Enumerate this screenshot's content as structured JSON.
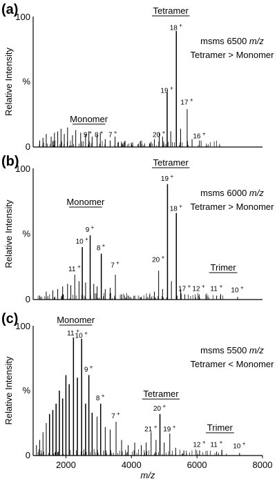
{
  "chart_data": [
    {
      "type": "line",
      "panel": "(a)",
      "ylabel": "Relative Intensity",
      "ytick_labels": [
        "0",
        "%",
        "100"
      ],
      "note_prefix": "msms 6500",
      "note_unit": "m/z",
      "note_line2": "Tetramer > Monomer",
      "xlim": [
        1000,
        8000
      ],
      "ylim": [
        0,
        100
      ],
      "species": [
        {
          "label": "Monomer",
          "x": 2700,
          "y": 17
        },
        {
          "label": "Tetramer",
          "x": 5200,
          "y": 100
        }
      ],
      "peaks": [
        {
          "label": "9",
          "charge": "+",
          "x": 2680,
          "y": 6
        },
        {
          "label": "8",
          "charge": "+",
          "x": 3020,
          "y": 6
        },
        {
          "label": "7",
          "charge": "+",
          "x": 3440,
          "y": 6
        },
        {
          "label": "20",
          "charge": "+",
          "x": 4850,
          "y": 6
        },
        {
          "label": "19",
          "charge": "+",
          "x": 5090,
          "y": 40
        },
        {
          "label": "18",
          "charge": "+",
          "x": 5370,
          "y": 88
        },
        {
          "label": "17",
          "charge": "+",
          "x": 5700,
          "y": 31
        },
        {
          "label": "16",
          "charge": "+",
          "x": 6080,
          "y": 5
        }
      ],
      "series": [
        {
          "x": [
            1200,
            1300,
            1400,
            1550,
            1650,
            1750,
            1850,
            1950,
            2050,
            2200,
            2300,
            2450,
            2600,
            2700,
            2800,
            2950,
            3050,
            3200,
            3350,
            3500,
            3600,
            3800,
            4000,
            4200,
            4400,
            4600,
            4700,
            4850,
            4950,
            5090,
            5200,
            5370,
            5500,
            5700,
            5850,
            6080,
            6300
          ],
          "y": [
            5,
            7,
            10,
            8,
            11,
            12,
            14,
            10,
            15,
            9,
            13,
            11,
            10,
            12,
            8,
            9,
            11,
            6,
            5,
            8,
            4,
            3,
            3,
            2,
            2,
            4,
            6,
            11,
            8,
            42,
            12,
            89,
            14,
            29,
            6,
            5,
            1
          ]
        }
      ]
    },
    {
      "type": "line",
      "panel": "(b)",
      "ylabel": "Relative Intensity",
      "ytick_labels": [
        "0",
        "%",
        "100"
      ],
      "note_prefix": "msms 6000",
      "note_unit": "m/z",
      "note_line2": "Tetramer > Monomer",
      "xlim": [
        1000,
        8000
      ],
      "ylim": [
        0,
        100
      ],
      "species": [
        {
          "label": "Monomer",
          "x": 2600,
          "y": 70
        },
        {
          "label": "Tetramer",
          "x": 5200,
          "y": 100
        },
        {
          "label": "Trimer",
          "x": 6800,
          "y": 20
        }
      ],
      "peaks": [
        {
          "label": "11",
          "charge": "+",
          "x": 2270,
          "y": 20
        },
        {
          "label": "10",
          "charge": "+",
          "x": 2500,
          "y": 41
        },
        {
          "label": "9",
          "charge": "+",
          "x": 2740,
          "y": 50
        },
        {
          "label": "8",
          "charge": "+",
          "x": 3080,
          "y": 36
        },
        {
          "label": "7",
          "charge": "+",
          "x": 3510,
          "y": 23
        },
        {
          "label": "20",
          "charge": "+",
          "x": 4830,
          "y": 27
        },
        {
          "label": "19",
          "charge": "+",
          "x": 5100,
          "y": 89
        },
        {
          "label": "18",
          "charge": "+",
          "x": 5370,
          "y": 66
        },
        {
          "label": "17",
          "charge": "+",
          "x": 5630,
          "y": 5
        },
        {
          "label": "12",
          "charge": "+",
          "x": 6060,
          "y": 5
        },
        {
          "label": "11",
          "charge": "+",
          "x": 6600,
          "y": 5
        },
        {
          "label": "10",
          "charge": "+",
          "x": 7240,
          "y": 4
        }
      ],
      "series": [
        {
          "x": [
            1200,
            1400,
            1600,
            1750,
            1900,
            2050,
            2150,
            2270,
            2400,
            2500,
            2600,
            2740,
            2850,
            2950,
            3080,
            3200,
            3350,
            3510,
            3700,
            3900,
            4100,
            4300,
            4500,
            4700,
            4830,
            4950,
            5100,
            5220,
            5370,
            5500,
            5630,
            6060,
            6600,
            7240
          ],
          "y": [
            3,
            6,
            7,
            8,
            10,
            12,
            11,
            19,
            14,
            40,
            13,
            49,
            12,
            10,
            35,
            8,
            9,
            19,
            4,
            3,
            3,
            2,
            2,
            6,
            22,
            8,
            88,
            14,
            66,
            8,
            4,
            3,
            3,
            2
          ]
        }
      ]
    },
    {
      "type": "line",
      "panel": "(c)",
      "ylabel": "Relative Intensity",
      "ytick_labels": [
        "0",
        "%",
        "100"
      ],
      "xlabel": "m/z",
      "note_prefix": "msms 5500",
      "note_unit": "m/z",
      "note_line2": "Tetramer < Monomer",
      "xlim": [
        1000,
        8000
      ],
      "ylim": [
        0,
        100
      ],
      "xticks": [
        2000,
        4000,
        6000,
        8000
      ],
      "species": [
        {
          "label": "Monomer",
          "x": 2300,
          "y": 100
        },
        {
          "label": "Tetramer",
          "x": 4900,
          "y": 43
        },
        {
          "label": "Trimer",
          "x": 6700,
          "y": 17
        }
      ],
      "peaks": [
        {
          "label": "11",
          "charge": "+",
          "x": 2230,
          "y": 91
        },
        {
          "label": "10",
          "charge": "+",
          "x": 2480,
          "y": 89
        },
        {
          "label": "9",
          "charge": "+",
          "x": 2700,
          "y": 63
        },
        {
          "label": "8",
          "charge": "+",
          "x": 3060,
          "y": 41
        },
        {
          "label": "7",
          "charge": "+",
          "x": 3530,
          "y": 27
        },
        {
          "label": "21",
          "charge": "+",
          "x": 4600,
          "y": 17
        },
        {
          "label": "20",
          "charge": "+",
          "x": 4870,
          "y": 33
        },
        {
          "label": "19",
          "charge": "+",
          "x": 5170,
          "y": 17
        },
        {
          "label": "12",
          "charge": "+",
          "x": 6080,
          "y": 5
        },
        {
          "label": "11",
          "charge": "+",
          "x": 6600,
          "y": 5
        },
        {
          "label": "10",
          "charge": "+",
          "x": 7300,
          "y": 4
        }
      ],
      "series": [
        {
          "x": [
            1100,
            1200,
            1300,
            1400,
            1500,
            1600,
            1700,
            1800,
            1900,
            2000,
            2100,
            2230,
            2350,
            2480,
            2600,
            2700,
            2800,
            2950,
            3060,
            3200,
            3350,
            3530,
            3700,
            3900,
            4100,
            4300,
            4450,
            4600,
            4750,
            4870,
            5000,
            5170,
            5350,
            5600,
            6080,
            6600,
            7300
          ],
          "y": [
            8,
            12,
            18,
            25,
            32,
            35,
            40,
            50,
            44,
            62,
            55,
            91,
            60,
            90,
            40,
            62,
            33,
            30,
            40,
            22,
            20,
            26,
            12,
            8,
            10,
            8,
            10,
            18,
            12,
            32,
            10,
            17,
            6,
            4,
            4,
            3,
            2
          ]
        }
      ]
    }
  ]
}
